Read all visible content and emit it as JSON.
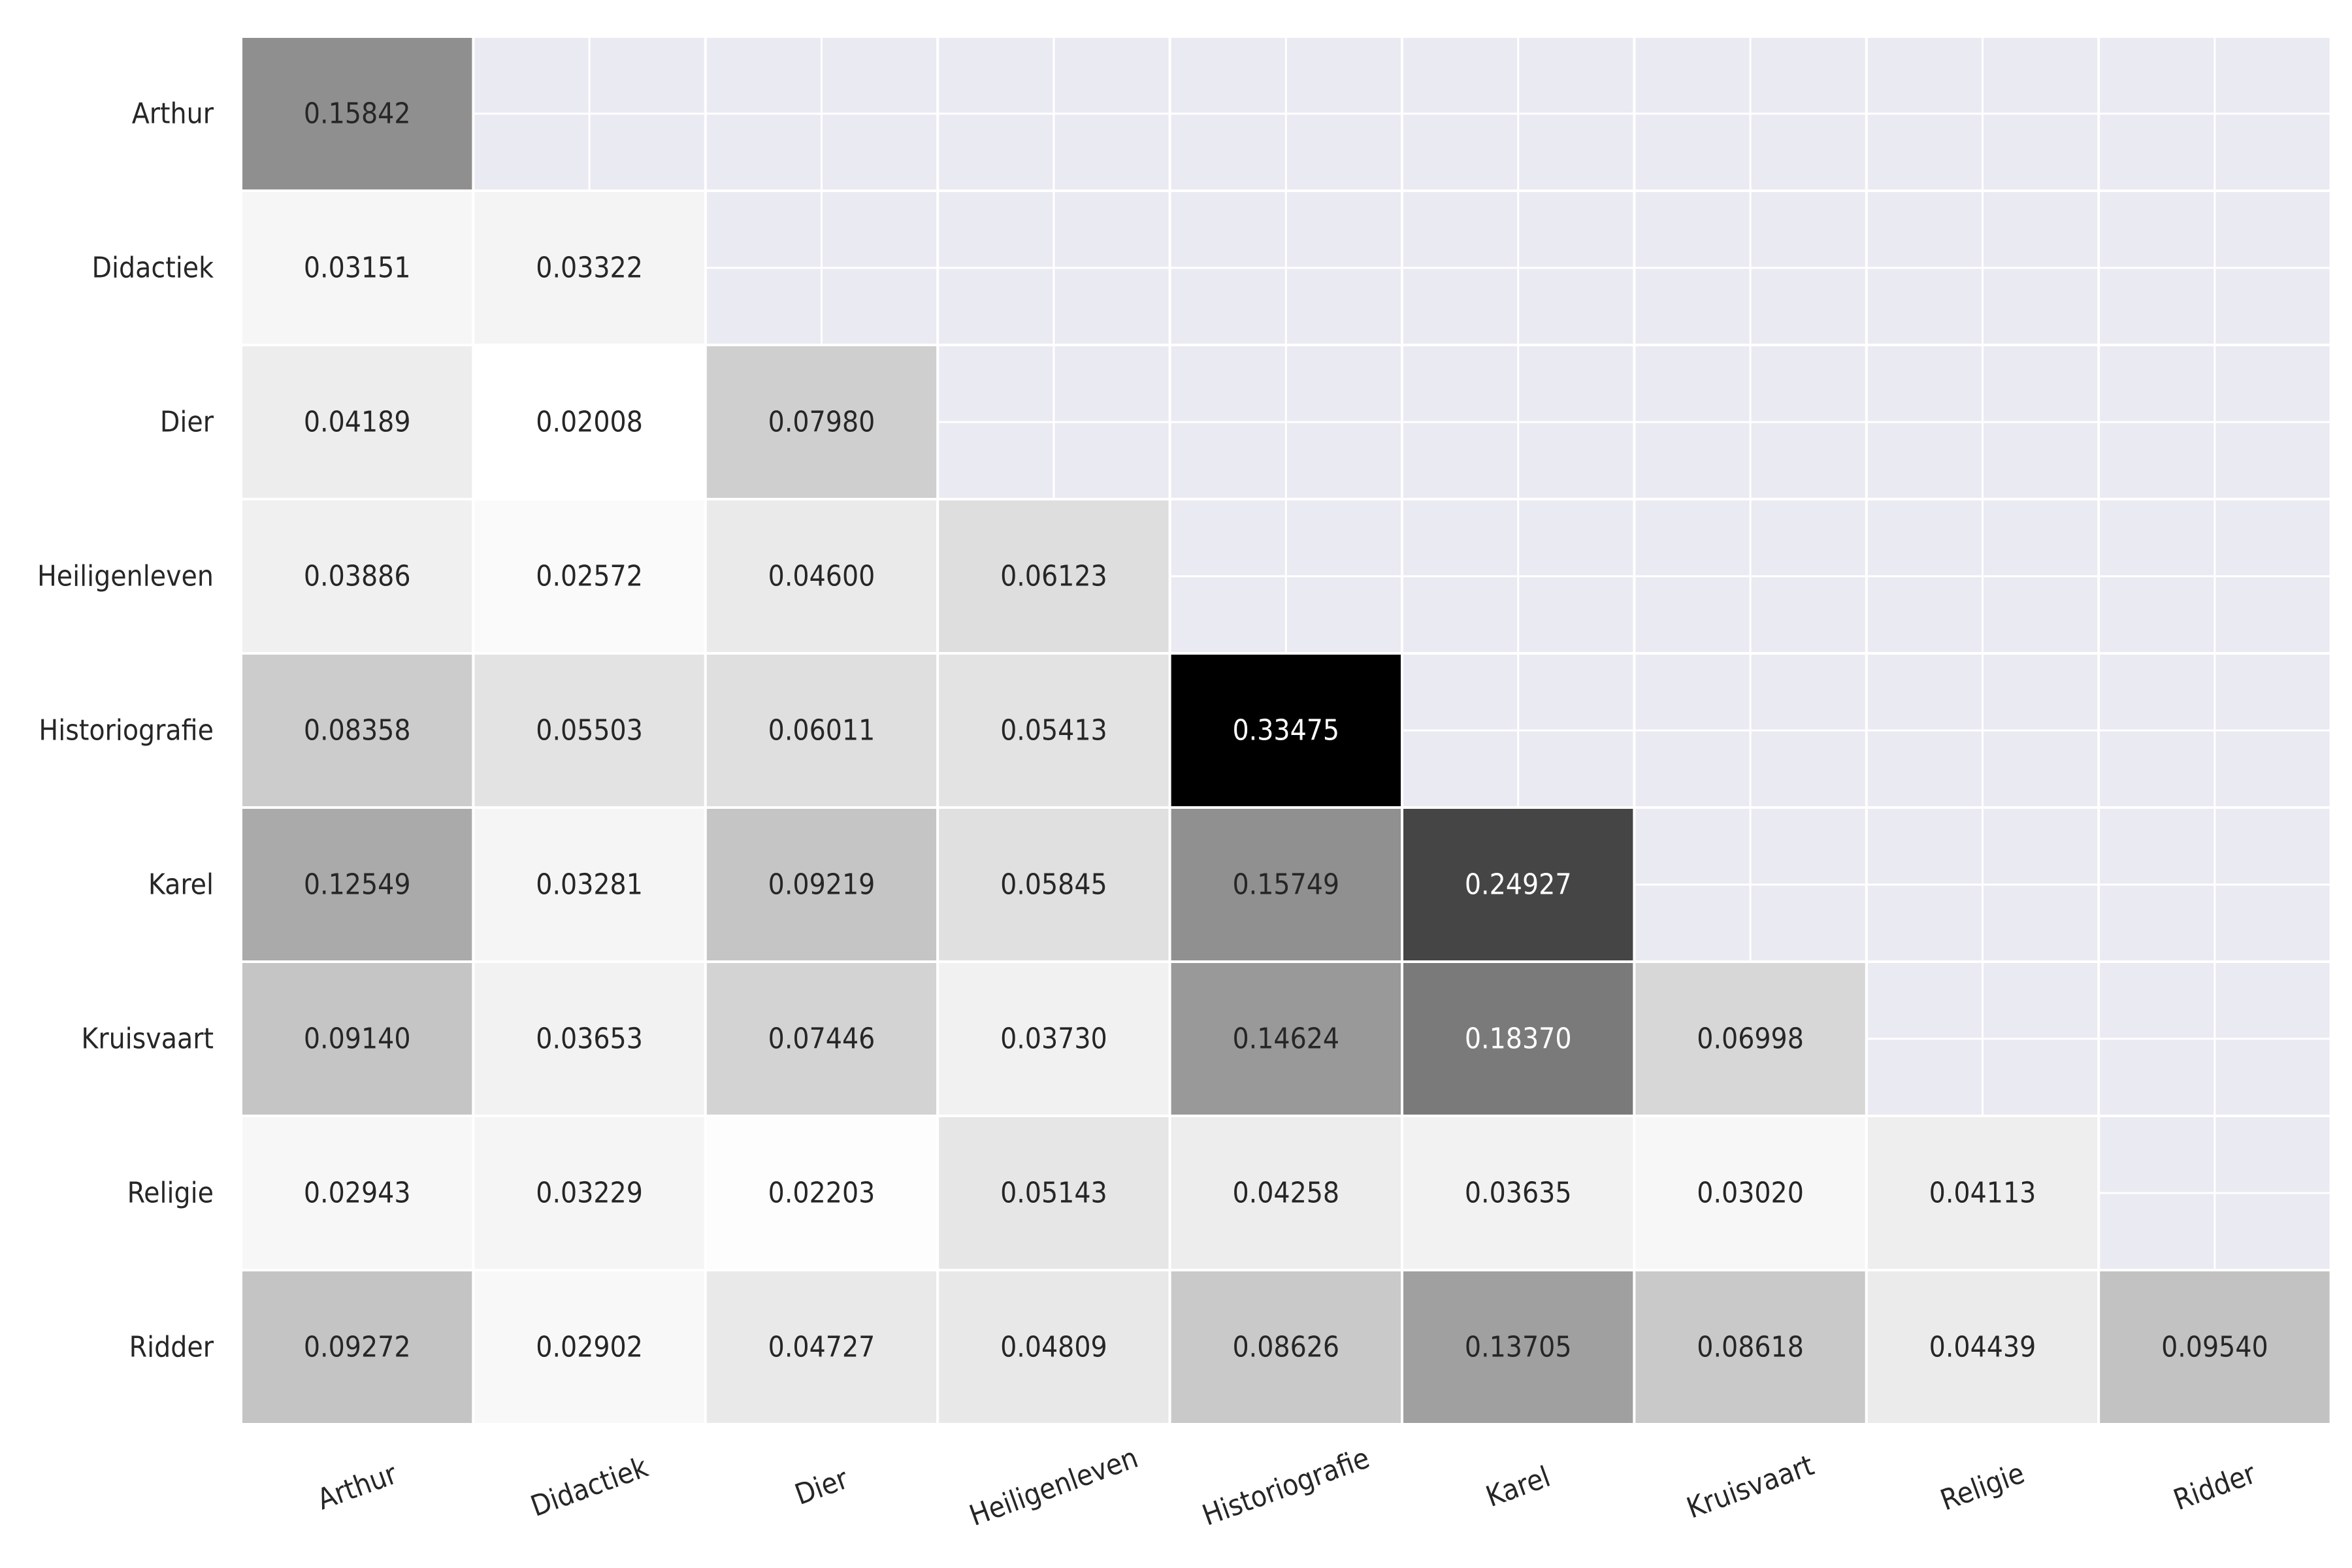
{
  "chart_data": {
    "type": "heatmap",
    "title": "",
    "xlabel": "",
    "ylabel": "",
    "categories": [
      "Arthur",
      "Didactiek",
      "Dier",
      "Heiligenleven",
      "Historiografie",
      "Karel",
      "Kruisvaart",
      "Religie",
      "Ridder"
    ],
    "mask": "upper-triangle",
    "value_range": [
      0.02008,
      0.33475
    ],
    "colormap": "white-to-black (greys)",
    "annotation_format": "%.5f",
    "values": [
      [
        0.15842
      ],
      [
        0.03151,
        0.03322
      ],
      [
        0.04189,
        0.02008,
        0.0798
      ],
      [
        0.03886,
        0.02572,
        0.046,
        0.06123
      ],
      [
        0.08358,
        0.05503,
        0.06011,
        0.05413,
        0.33475
      ],
      [
        0.12549,
        0.03281,
        0.09219,
        0.05845,
        0.15749,
        0.24927
      ],
      [
        0.0914,
        0.03653,
        0.07446,
        0.0373,
        0.14624,
        0.1837,
        0.06998
      ],
      [
        0.02943,
        0.03229,
        0.02203,
        0.05143,
        0.04258,
        0.03635,
        0.0302,
        0.04113
      ],
      [
        0.09272,
        0.02902,
        0.04727,
        0.04809,
        0.08626,
        0.13705,
        0.08618,
        0.04439,
        0.0954
      ]
    ],
    "value_labels": [
      [
        "0.15842"
      ],
      [
        "0.03151",
        "0.03322"
      ],
      [
        "0.04189",
        "0.02008",
        "0.07980"
      ],
      [
        "0.03886",
        "0.02572",
        "0.04600",
        "0.06123"
      ],
      [
        "0.08358",
        "0.05503",
        "0.06011",
        "0.05413",
        "0.33475"
      ],
      [
        "0.12549",
        "0.03281",
        "0.09219",
        "0.05845",
        "0.15749",
        "0.24927"
      ],
      [
        "0.09140",
        "0.03653",
        "0.07446",
        "0.03730",
        "0.14624",
        "0.18370",
        "0.06998"
      ],
      [
        "0.02943",
        "0.03229",
        "0.02203",
        "0.05143",
        "0.04258",
        "0.03635",
        "0.03020",
        "0.04113"
      ],
      [
        "0.09272",
        "0.02902",
        "0.04727",
        "0.04809",
        "0.08626",
        "0.13705",
        "0.08618",
        "0.04439",
        "0.09540"
      ]
    ],
    "grid": true,
    "colors": {
      "page_background": "#ffffff",
      "axes_background": "#eaeaf2",
      "grid": "#ffffff",
      "text_dark": "#262626",
      "text_light": "#ffffff"
    }
  }
}
